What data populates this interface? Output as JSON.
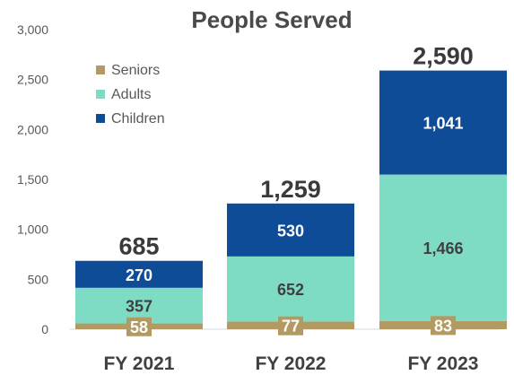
{
  "chart_data": {
    "type": "bar",
    "stacked": true,
    "title": "People Served",
    "categories": [
      "FY 2021",
      "FY 2022",
      "FY 2023"
    ],
    "series": [
      {
        "name": "Seniors",
        "values": [
          58,
          77,
          83
        ],
        "color": "#b39a62",
        "label_color": "#ffffff"
      },
      {
        "name": "Adults",
        "values": [
          357,
          652,
          1466
        ],
        "color": "#7fdcc4",
        "label_color": "#404040"
      },
      {
        "name": "Children",
        "values": [
          270,
          530,
          1041
        ],
        "color": "#0f4c97",
        "label_color": "#ffffff"
      }
    ],
    "data_labels": [
      [
        "58",
        "77",
        "83"
      ],
      [
        "357",
        "652",
        "1,466"
      ],
      [
        "270",
        "530",
        "1,041"
      ]
    ],
    "totals": [
      "685",
      "1,259",
      "2,590"
    ],
    "total_values": [
      685,
      1259,
      2590
    ],
    "ylim": [
      0,
      3000
    ],
    "yticks": [
      "0",
      "500",
      "1,000",
      "1,500",
      "2,000",
      "2,500",
      "3,000"
    ],
    "ytick_values": [
      0,
      500,
      1000,
      1500,
      2000,
      2500,
      3000
    ],
    "grid": false,
    "legend": "top-left",
    "legend_order": [
      0,
      1,
      2
    ]
  }
}
